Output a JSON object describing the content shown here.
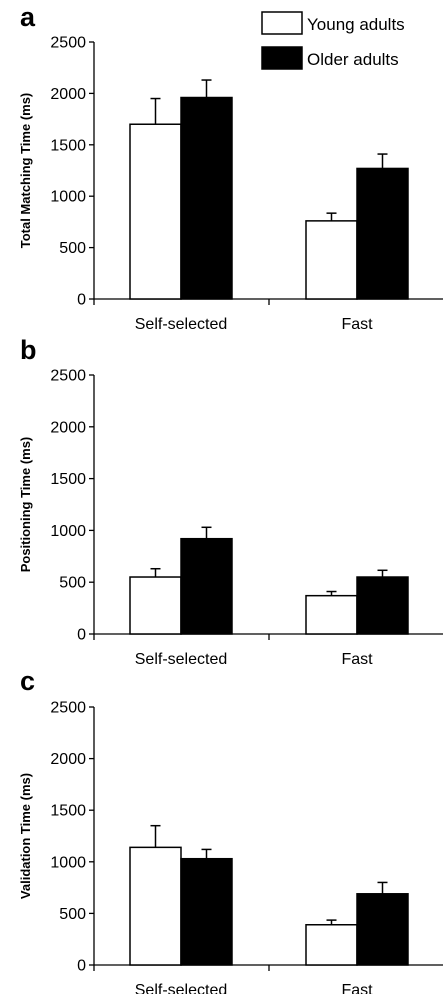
{
  "legend": {
    "items": [
      {
        "label": "Young adults",
        "color": "#ffffff"
      },
      {
        "label": "Older adults",
        "color": "#000000"
      }
    ],
    "placement": "top-right"
  },
  "chart_data": [
    {
      "type": "bar",
      "panel": "a",
      "ylabel": "Total Matching Time (ms)",
      "categories": [
        "Self-selected",
        "Fast"
      ],
      "ylim": [
        0,
        2500
      ],
      "yticks": [
        "0",
        "500",
        "1000",
        "1500",
        "2000",
        "2500"
      ],
      "series": [
        {
          "name": "Young adults",
          "color": "#ffffff",
          "values": [
            1700,
            760
          ],
          "errors": [
            250,
            75
          ]
        },
        {
          "name": "Older adults",
          "color": "#000000",
          "values": [
            1960,
            1270
          ],
          "errors": [
            170,
            140
          ]
        }
      ],
      "grid": false
    },
    {
      "type": "bar",
      "panel": "b",
      "ylabel": "Positioning Time (ms)",
      "categories": [
        "Self-selected",
        "Fast"
      ],
      "ylim": [
        0,
        2500
      ],
      "yticks": [
        "0",
        "500",
        "1000",
        "1500",
        "2000",
        "2500"
      ],
      "series": [
        {
          "name": "Young adults",
          "color": "#ffffff",
          "values": [
            550,
            370
          ],
          "errors": [
            80,
            40
          ]
        },
        {
          "name": "Older adults",
          "color": "#000000",
          "values": [
            920,
            550
          ],
          "errors": [
            110,
            65
          ]
        }
      ],
      "grid": false
    },
    {
      "type": "bar",
      "panel": "c",
      "ylabel": "Validation Time (ms)",
      "categories": [
        "Self-selected",
        "Fast"
      ],
      "ylim": [
        0,
        2500
      ],
      "yticks": [
        "0",
        "500",
        "1000",
        "1500",
        "2000",
        "2500"
      ],
      "series": [
        {
          "name": "Young adults",
          "color": "#ffffff",
          "values": [
            1140,
            390
          ],
          "errors": [
            210,
            45
          ]
        },
        {
          "name": "Older adults",
          "color": "#000000",
          "values": [
            1030,
            690
          ],
          "errors": [
            90,
            110
          ]
        }
      ],
      "grid": false
    }
  ]
}
